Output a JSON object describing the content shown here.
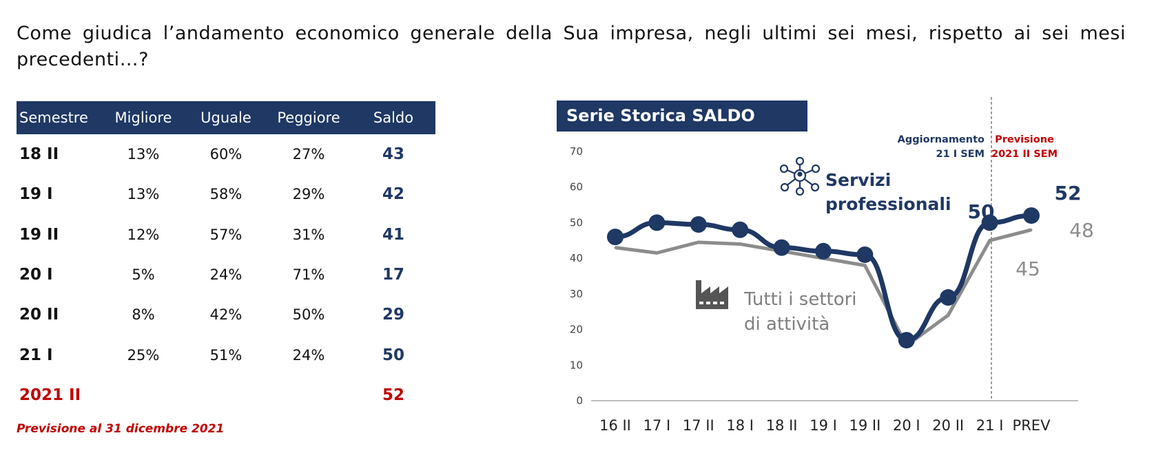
{
  "question": "Come giudica l’andamento economico generale della Sua impresa, negli ultimi sei mesi, rispetto ai sei mesi precedenti…?",
  "table": {
    "headers": [
      "Semestre",
      "Migliore",
      "Uguale",
      "Peggiore",
      "Saldo"
    ],
    "rows": [
      {
        "semestre": "18 II",
        "migliore": "13%",
        "uguale": "60%",
        "peggiore": "27%",
        "saldo": "43"
      },
      {
        "semestre": "19 I",
        "migliore": "13%",
        "uguale": "58%",
        "peggiore": "29%",
        "saldo": "42"
      },
      {
        "semestre": "19 II",
        "migliore": "12%",
        "uguale": "57%",
        "peggiore": "31%",
        "saldo": "41"
      },
      {
        "semestre": "20 I",
        "migliore": "5%",
        "uguale": "24%",
        "peggiore": "71%",
        "saldo": "17"
      },
      {
        "semestre": "20 II",
        "migliore": "8%",
        "uguale": "42%",
        "peggiore": "50%",
        "saldo": "29"
      },
      {
        "semestre": "21 I",
        "migliore": "25%",
        "uguale": "51%",
        "peggiore": "24%",
        "saldo": "50"
      },
      {
        "semestre": "2021 II",
        "migliore": "",
        "uguale": "",
        "peggiore": "",
        "saldo": "52"
      }
    ],
    "note": "Previsione al 31 dicembre 2021"
  },
  "chart_data": {
    "type": "line",
    "title": "Serie Storica SALDO",
    "categories": [
      "16 II",
      "17 I",
      "17 II",
      "18 I",
      "18 II",
      "19 I",
      "19 II",
      "20 I",
      "20 II",
      "21 I",
      "PREV"
    ],
    "ylim": [
      0,
      70
    ],
    "yticks": [
      "0",
      "10",
      "20",
      "30",
      "40",
      "50",
      "60",
      "70"
    ],
    "grid": false,
    "series": [
      {
        "name": "Servizi professionali",
        "values": [
          46,
          50,
          49.5,
          48,
          43,
          42,
          41,
          17,
          29,
          50,
          52
        ],
        "color": "#1f3864"
      },
      {
        "name": "Tutti i settori di attività",
        "values": [
          43,
          41.5,
          44.5,
          44,
          42,
          40,
          38,
          15.5,
          24,
          45,
          48
        ],
        "color": "#8c8c8c"
      }
    ],
    "annotations": {
      "update_label": [
        "Aggiornamento",
        "21 I SEM"
      ],
      "forecast_label": [
        "Previsione",
        "2021 II SEM"
      ],
      "servizi_label": [
        "Servizi",
        "professionali"
      ],
      "tutti_label": [
        "Tutti i settori",
        "di attività"
      ],
      "val_servizi_21": "50",
      "val_servizi_prev": "52",
      "val_tutti_21": "45",
      "val_tutti_prev": "48"
    },
    "colors": {
      "servizi": "#1f3864",
      "tutti": "#8c8c8c",
      "forecast": "#c00000"
    }
  }
}
